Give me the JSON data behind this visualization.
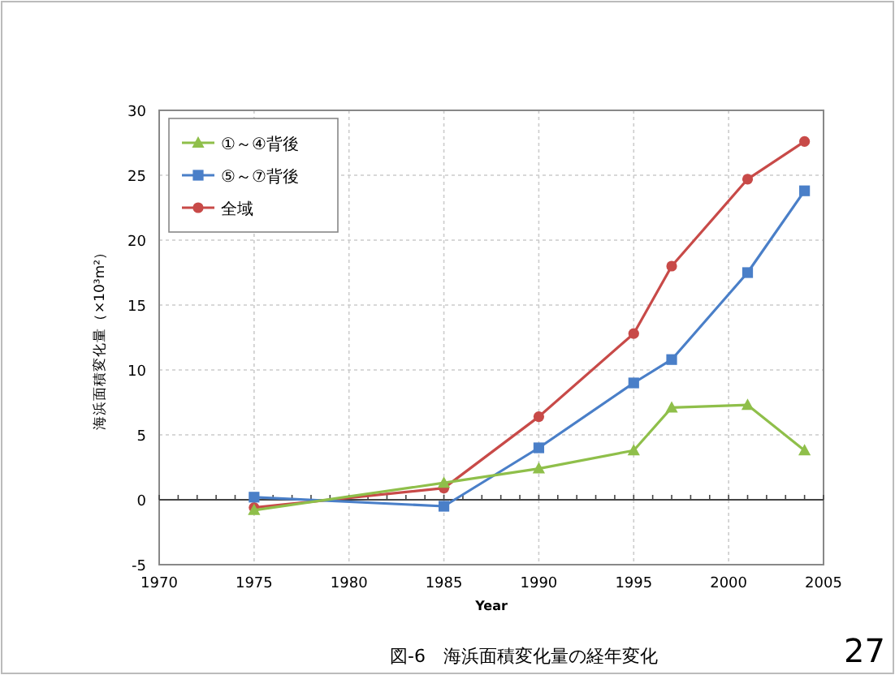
{
  "chart_data": {
    "type": "line",
    "xlabel": "Year",
    "ylabel": "海浜面積変化量（×10³m²）",
    "annotations": [
      "図-6　海浜面積変化量の経年変化",
      "27"
    ],
    "xlim": [
      1970,
      2005
    ],
    "xticks": [
      1970,
      1975,
      1980,
      1985,
      1990,
      1995,
      2000,
      2005
    ],
    "ylim": [
      -5,
      30
    ],
    "yticks": [
      -5,
      0,
      5,
      10,
      15,
      20,
      25,
      30
    ],
    "grid": true,
    "legend": "top left",
    "series": [
      {
        "name": "①～④背後",
        "color": "#8fbf4a",
        "marker": "triangle",
        "x": [
          1975,
          1985,
          1990,
          1995,
          1997,
          2001,
          2004
        ],
        "values": [
          -0.8,
          1.3,
          2.4,
          3.8,
          7.1,
          7.3,
          3.8
        ]
      },
      {
        "name": "⑤～⑦背後",
        "color": "#4a7fc8",
        "marker": "square",
        "x": [
          1975,
          1985,
          1990,
          1995,
          1997,
          2001,
          2004
        ],
        "values": [
          0.2,
          -0.5,
          4.0,
          9.0,
          10.8,
          17.5,
          23.8
        ]
      },
      {
        "name": "全域",
        "color": "#c84a48",
        "marker": "circle",
        "x": [
          1975,
          1985,
          1990,
          1995,
          1997,
          2001,
          2004
        ],
        "values": [
          -0.6,
          0.9,
          6.4,
          12.8,
          18.0,
          24.7,
          27.6
        ]
      }
    ]
  }
}
